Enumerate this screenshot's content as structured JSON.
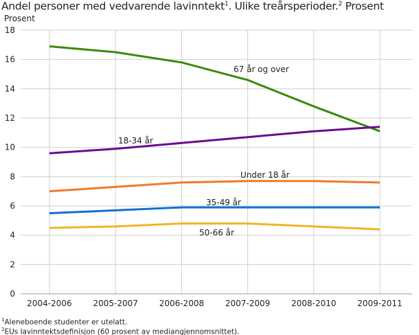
{
  "title": {
    "main": "Andel personer med vedvarende lavinntekt",
    "sup1": "1",
    "mid": ". Ulike treårsperioder.",
    "sup2": "2",
    "end": " Prosent"
  },
  "footnotes": [
    {
      "mark": "1",
      "text": "Aleneboende studenter er utelatt."
    },
    {
      "mark": "2",
      "text": "EUs lavinntektsdefinisjon (60 prosent av mediangjennomsnittet)."
    }
  ],
  "chart_data": {
    "type": "line",
    "ylabel": "Prosent",
    "xlabel": "",
    "ylim": [
      0,
      18
    ],
    "yticks": [
      0,
      2,
      4,
      6,
      8,
      10,
      12,
      14,
      16,
      18
    ],
    "grid": true,
    "legend": "inline labels",
    "categories": [
      "2004-2006",
      "2005-2007",
      "2006-2008",
      "2007-2009",
      "2008-2010",
      "2009-2011"
    ],
    "series": [
      {
        "name": "67 år og over",
        "color": "#3c8a06",
        "values": [
          16.9,
          16.5,
          15.8,
          14.6,
          12.8,
          11.1
        ]
      },
      {
        "name": "18-34 år",
        "color": "#6b0a8e",
        "values": [
          9.6,
          9.9,
          10.3,
          10.7,
          11.1,
          11.4
        ]
      },
      {
        "name": "Under 18 år",
        "color": "#f07a2c",
        "values": [
          7.0,
          7.3,
          7.6,
          7.7,
          7.7,
          7.6
        ]
      },
      {
        "name": "35-49 år",
        "color": "#1170d0",
        "values": [
          5.5,
          5.7,
          5.9,
          5.9,
          5.9,
          5.9
        ]
      },
      {
        "name": "50-66 år",
        "color": "#f0b428",
        "values": [
          4.5,
          4.6,
          4.8,
          4.8,
          4.6,
          4.4
        ]
      }
    ]
  }
}
